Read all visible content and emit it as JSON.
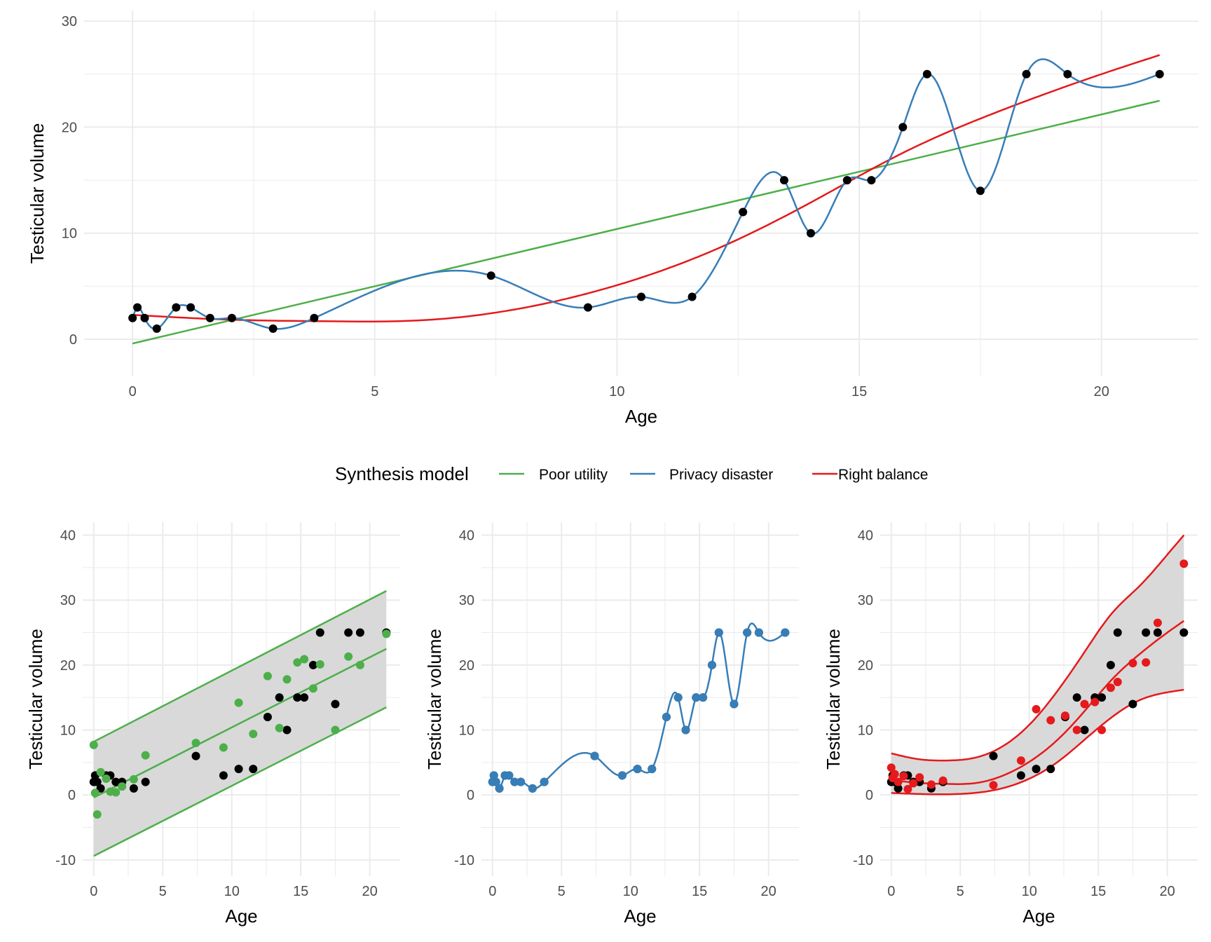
{
  "colors": {
    "poor_utility": "#4DAF4A",
    "privacy_disaster": "#377EB8",
    "right_balance": "#E41A1C",
    "observed": "#000000",
    "band": "#D9D9D9",
    "grid": "#EBEBEB"
  },
  "legend": {
    "title": "Synthesis model",
    "items": [
      {
        "label": "Poor utility",
        "color": "#4DAF4A"
      },
      {
        "label": "Privacy disaster",
        "color": "#377EB8"
      },
      {
        "label": "Right balance",
        "color": "#E41A1C"
      }
    ]
  },
  "observed": {
    "age": [
      0.0,
      0.1,
      0.25,
      0.5,
      0.9,
      1.2,
      1.6,
      2.05,
      2.9,
      3.75,
      7.4,
      9.4,
      10.5,
      11.55,
      12.6,
      13.45,
      14.0,
      14.75,
      15.25,
      15.9,
      16.4,
      17.5,
      18.45,
      19.3,
      21.2
    ],
    "volume": [
      2,
      3,
      2,
      1,
      3,
      3,
      2,
      2,
      1,
      2,
      6,
      3,
      4,
      4,
      12,
      15,
      10,
      15,
      15,
      20,
      25,
      14,
      25,
      25,
      25
    ]
  },
  "chart_data": [
    {
      "type": "scatter",
      "panel": "top",
      "xlabel": "Age",
      "ylabel": "Testicular volume",
      "xlim": [
        -1.0,
        22.0
      ],
      "ylim": [
        -3.5,
        31.0
      ],
      "x_ticks": [
        0,
        5,
        10,
        15,
        20
      ],
      "y_ticks": [
        0,
        10,
        20,
        30
      ],
      "grid": true,
      "points": "observed",
      "series": [
        {
          "name": "Poor utility",
          "model": "linear",
          "intercept": -0.4,
          "slope": 1.08
        },
        {
          "name": "Privacy disaster",
          "model": "interpolating spline through observed points"
        },
        {
          "name": "Right balance",
          "model": "smooth",
          "x": [
            0,
            2,
            4,
            6,
            8,
            10,
            12,
            14,
            16,
            18,
            20,
            21.2
          ],
          "y": [
            2.3,
            1.85,
            1.7,
            1.8,
            2.9,
            5.1,
            8.4,
            12.9,
            17.8,
            21.7,
            25.0,
            26.8
          ]
        }
      ]
    },
    {
      "type": "scatter",
      "panel": "bottom-left",
      "xlabel": "Age",
      "ylabel": "Testicular volume",
      "xlim": [
        -0.8,
        22.2
      ],
      "ylim": [
        -12.5,
        42.0
      ],
      "x_ticks": [
        0,
        5,
        10,
        15,
        20
      ],
      "y_ticks": [
        -10,
        0,
        10,
        20,
        30,
        40
      ],
      "grid": true,
      "band": {
        "lower_intercept": -9.4,
        "lower_slope": 1.08,
        "upper_intercept": 8.2,
        "upper_slope": 1.095
      },
      "fit": {
        "intercept": -0.4,
        "slope": 1.08
      },
      "synthetic_points": {
        "age": [
          0.0,
          0.1,
          0.25,
          0.5,
          0.9,
          1.2,
          1.6,
          2.05,
          2.9,
          3.75,
          7.4,
          9.4,
          10.5,
          11.55,
          12.6,
          13.45,
          14.0,
          14.75,
          15.25,
          15.9,
          16.4,
          17.5,
          18.45,
          19.3,
          21.2
        ],
        "volume": [
          7.7,
          0.3,
          -3.0,
          3.5,
          2.5,
          0.5,
          0.4,
          1.3,
          2.4,
          6.1,
          8.0,
          7.3,
          14.2,
          9.4,
          18.3,
          10.3,
          17.8,
          20.4,
          20.9,
          16.4,
          20.1,
          10.0,
          21.3,
          20.0,
          24.8
        ]
      },
      "points": "observed"
    },
    {
      "type": "scatter",
      "panel": "bottom-center",
      "xlabel": "Age",
      "ylabel": "Testicular volume",
      "xlim": [
        -0.8,
        22.2
      ],
      "ylim": [
        -12.5,
        42.0
      ],
      "x_ticks": [
        0,
        5,
        10,
        15,
        20
      ],
      "y_ticks": [
        -10,
        0,
        10,
        20,
        30,
        40
      ],
      "grid": true,
      "series": [
        {
          "name": "Privacy disaster",
          "model": "interpolating spline through observed points"
        }
      ],
      "synthetic_points": "identical to observed",
      "points": "observed"
    },
    {
      "type": "scatter",
      "panel": "bottom-right",
      "xlabel": "Age",
      "ylabel": "Testicular volume",
      "xlim": [
        -0.8,
        22.2
      ],
      "ylim": [
        -12.5,
        42.0
      ],
      "x_ticks": [
        0,
        5,
        10,
        15,
        20
      ],
      "y_ticks": [
        -10,
        0,
        10,
        20,
        30,
        40
      ],
      "grid": true,
      "band": {
        "x": [
          0,
          2,
          4,
          6,
          8,
          10,
          12,
          14,
          16,
          18,
          20,
          21.2
        ],
        "lower": [
          0.3,
          0.15,
          0.1,
          0.3,
          1.0,
          2.5,
          5.0,
          8.5,
          12.0,
          14.6,
          15.8,
          16.2
        ],
        "upper": [
          6.4,
          5.5,
          5.3,
          5.7,
          7.4,
          10.8,
          15.9,
          22.0,
          28.0,
          32.2,
          37.0,
          40.0
        ]
      },
      "fit": {
        "x": [
          0,
          2,
          4,
          6,
          8,
          10,
          12,
          14,
          16,
          18,
          20,
          21.2
        ],
        "y": [
          2.3,
          1.85,
          1.7,
          1.8,
          2.9,
          5.1,
          8.4,
          12.9,
          17.8,
          21.7,
          25.0,
          26.8
        ]
      },
      "synthetic_points": {
        "age": [
          0.0,
          0.1,
          0.25,
          0.5,
          0.9,
          1.2,
          1.6,
          2.05,
          2.9,
          3.75,
          7.4,
          9.4,
          10.5,
          11.55,
          12.6,
          13.45,
          14.0,
          14.75,
          15.25,
          15.9,
          16.4,
          17.5,
          18.45,
          19.3,
          21.2
        ],
        "volume": [
          4.2,
          2.6,
          3.2,
          2.0,
          2.9,
          0.9,
          1.8,
          2.7,
          1.6,
          2.2,
          1.5,
          5.3,
          13.2,
          11.5,
          12.2,
          10.0,
          14.0,
          14.3,
          10.0,
          16.5,
          17.4,
          20.3,
          20.4,
          26.5,
          35.6
        ]
      },
      "points": "observed"
    }
  ]
}
